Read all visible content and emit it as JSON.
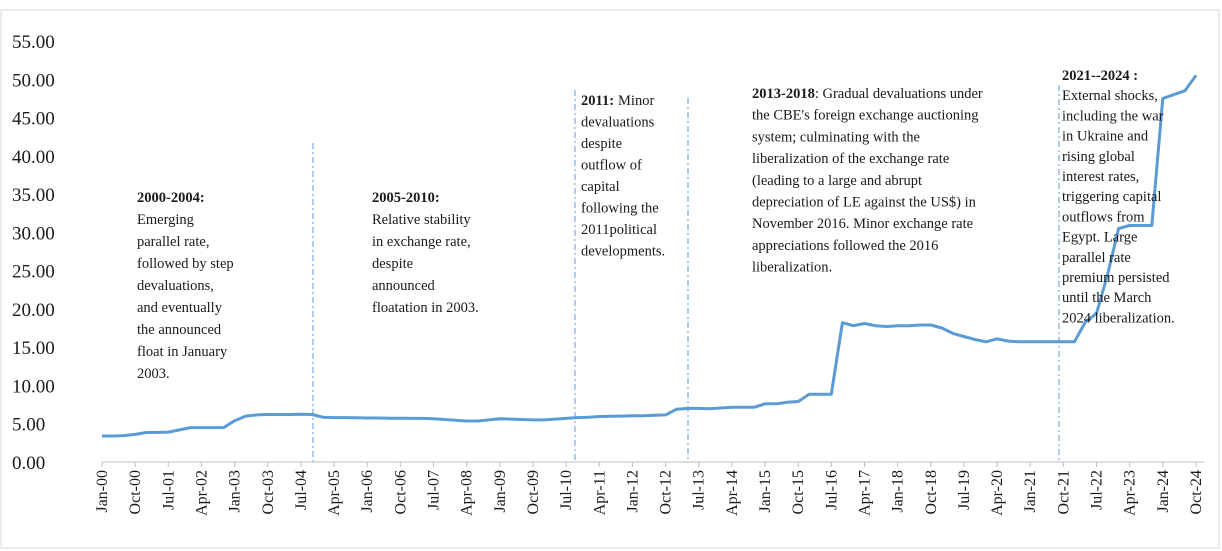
{
  "chart_data": {
    "type": "line",
    "categories": [
      "Jan-00",
      null,
      null,
      "Oct-00",
      null,
      null,
      "Jul-01",
      null,
      null,
      "Apr-02",
      null,
      null,
      "Jan-03",
      null,
      null,
      "Oct-03",
      null,
      null,
      "Jul-04",
      null,
      null,
      "Apr-05",
      null,
      null,
      "Jan-06",
      null,
      null,
      "Oct-06",
      null,
      null,
      "Jul-07",
      null,
      null,
      "Apr-08",
      null,
      null,
      "Jan-09",
      null,
      null,
      "Oct-09",
      null,
      null,
      "Jul-10",
      null,
      null,
      "Apr-11",
      null,
      null,
      "Jan-12",
      null,
      null,
      "Oct-12",
      null,
      null,
      "Jul-13",
      null,
      null,
      "Apr-14",
      null,
      null,
      "Jan-15",
      null,
      null,
      "Oct-15",
      null,
      null,
      "Jul-16",
      null,
      null,
      "Apr-17",
      null,
      null,
      "Jan-18",
      null,
      null,
      "Oct-18",
      null,
      null,
      "Jul-19",
      null,
      null,
      "Apr-20",
      null,
      null,
      "Jan-21",
      null,
      null,
      "Oct-21",
      null,
      null,
      "Jul-22",
      null,
      null,
      "Apr-23",
      null,
      null,
      "Jan-24",
      null,
      null,
      "Oct-24"
    ],
    "values": [
      3.4,
      3.4,
      3.45,
      3.6,
      3.85,
      3.87,
      3.9,
      4.2,
      4.5,
      4.5,
      4.5,
      4.5,
      5.4,
      6.0,
      6.15,
      6.2,
      6.2,
      6.2,
      6.25,
      6.2,
      5.85,
      5.8,
      5.8,
      5.78,
      5.75,
      5.75,
      5.72,
      5.72,
      5.7,
      5.7,
      5.65,
      5.55,
      5.45,
      5.35,
      5.35,
      5.5,
      5.65,
      5.6,
      5.55,
      5.5,
      5.5,
      5.6,
      5.7,
      5.8,
      5.85,
      5.95,
      5.97,
      6.0,
      6.05,
      6.05,
      6.1,
      6.15,
      6.9,
      7.0,
      7.0,
      6.95,
      7.05,
      7.15,
      7.15,
      7.15,
      7.6,
      7.6,
      7.8,
      7.9,
      8.85,
      8.85,
      8.85,
      18.2,
      17.8,
      18.1,
      17.8,
      17.7,
      17.8,
      17.8,
      17.9,
      17.9,
      17.5,
      16.8,
      16.4,
      16.0,
      15.7,
      16.1,
      15.8,
      15.7,
      15.7,
      15.7,
      15.7,
      15.7,
      15.7,
      18.3,
      19.4,
      24.5,
      30.5,
      30.9,
      30.9,
      30.9,
      47.5,
      48.0,
      48.5,
      50.5
    ],
    "color": "#5b9bd5",
    "ylim": [
      0,
      55
    ],
    "yticks": [
      {
        "value": 0,
        "label": "0.00"
      },
      {
        "value": 5,
        "label": "5.00"
      },
      {
        "value": 10,
        "label": "10.00"
      },
      {
        "value": 15,
        "label": "15.00"
      },
      {
        "value": 20,
        "label": "20.00"
      },
      {
        "value": 25,
        "label": "25.00"
      },
      {
        "value": 30,
        "label": "30.00"
      },
      {
        "value": 35,
        "label": "35.00"
      },
      {
        "value": 40,
        "label": "40.00"
      },
      {
        "value": 45,
        "label": "45.00"
      },
      {
        "value": 50,
        "label": "50.00"
      },
      {
        "value": 55,
        "label": "55.00"
      }
    ],
    "annotations": [
      {
        "heading": "2000-2004:",
        "lines": [
          "Emerging",
          "parallel rate,",
          "followed by step",
          "devaluations,",
          "and eventually",
          "the announced",
          "float in January",
          "2003."
        ]
      },
      {
        "heading": "2005-2010:",
        "lines": [
          "Relative stability",
          "in exchange rate,",
          "despite",
          "announced",
          "floatation in 2003."
        ]
      },
      {
        "heading": "2011:",
        "lines": [
          "Minor",
          "devaluations",
          "despite",
          "outflow of",
          "capital",
          "following the",
          "2011political",
          "developments."
        ]
      },
      {
        "heading": "2013-2018",
        "lines": [
          ": Gradual devaluations under",
          "the CBE's foreign exchange auctioning",
          "system; culminating with the",
          "liberalization of the exchange rate",
          "(leading to a large and abrupt",
          "depreciation of LE against the US$) in",
          "November 2016. Minor exchange rate",
          "appreciations followed the 2016",
          "liberalization."
        ]
      },
      {
        "heading": "2021--2024 :",
        "lines": [
          "External shocks,",
          "including the war",
          "in Ukraine and",
          "rising global",
          "interest rates,",
          "triggering capital",
          "outflows from",
          "Egypt. Large",
          "parallel rate",
          "premium persisted",
          "until the March",
          "2024 liberalization."
        ]
      }
    ]
  }
}
